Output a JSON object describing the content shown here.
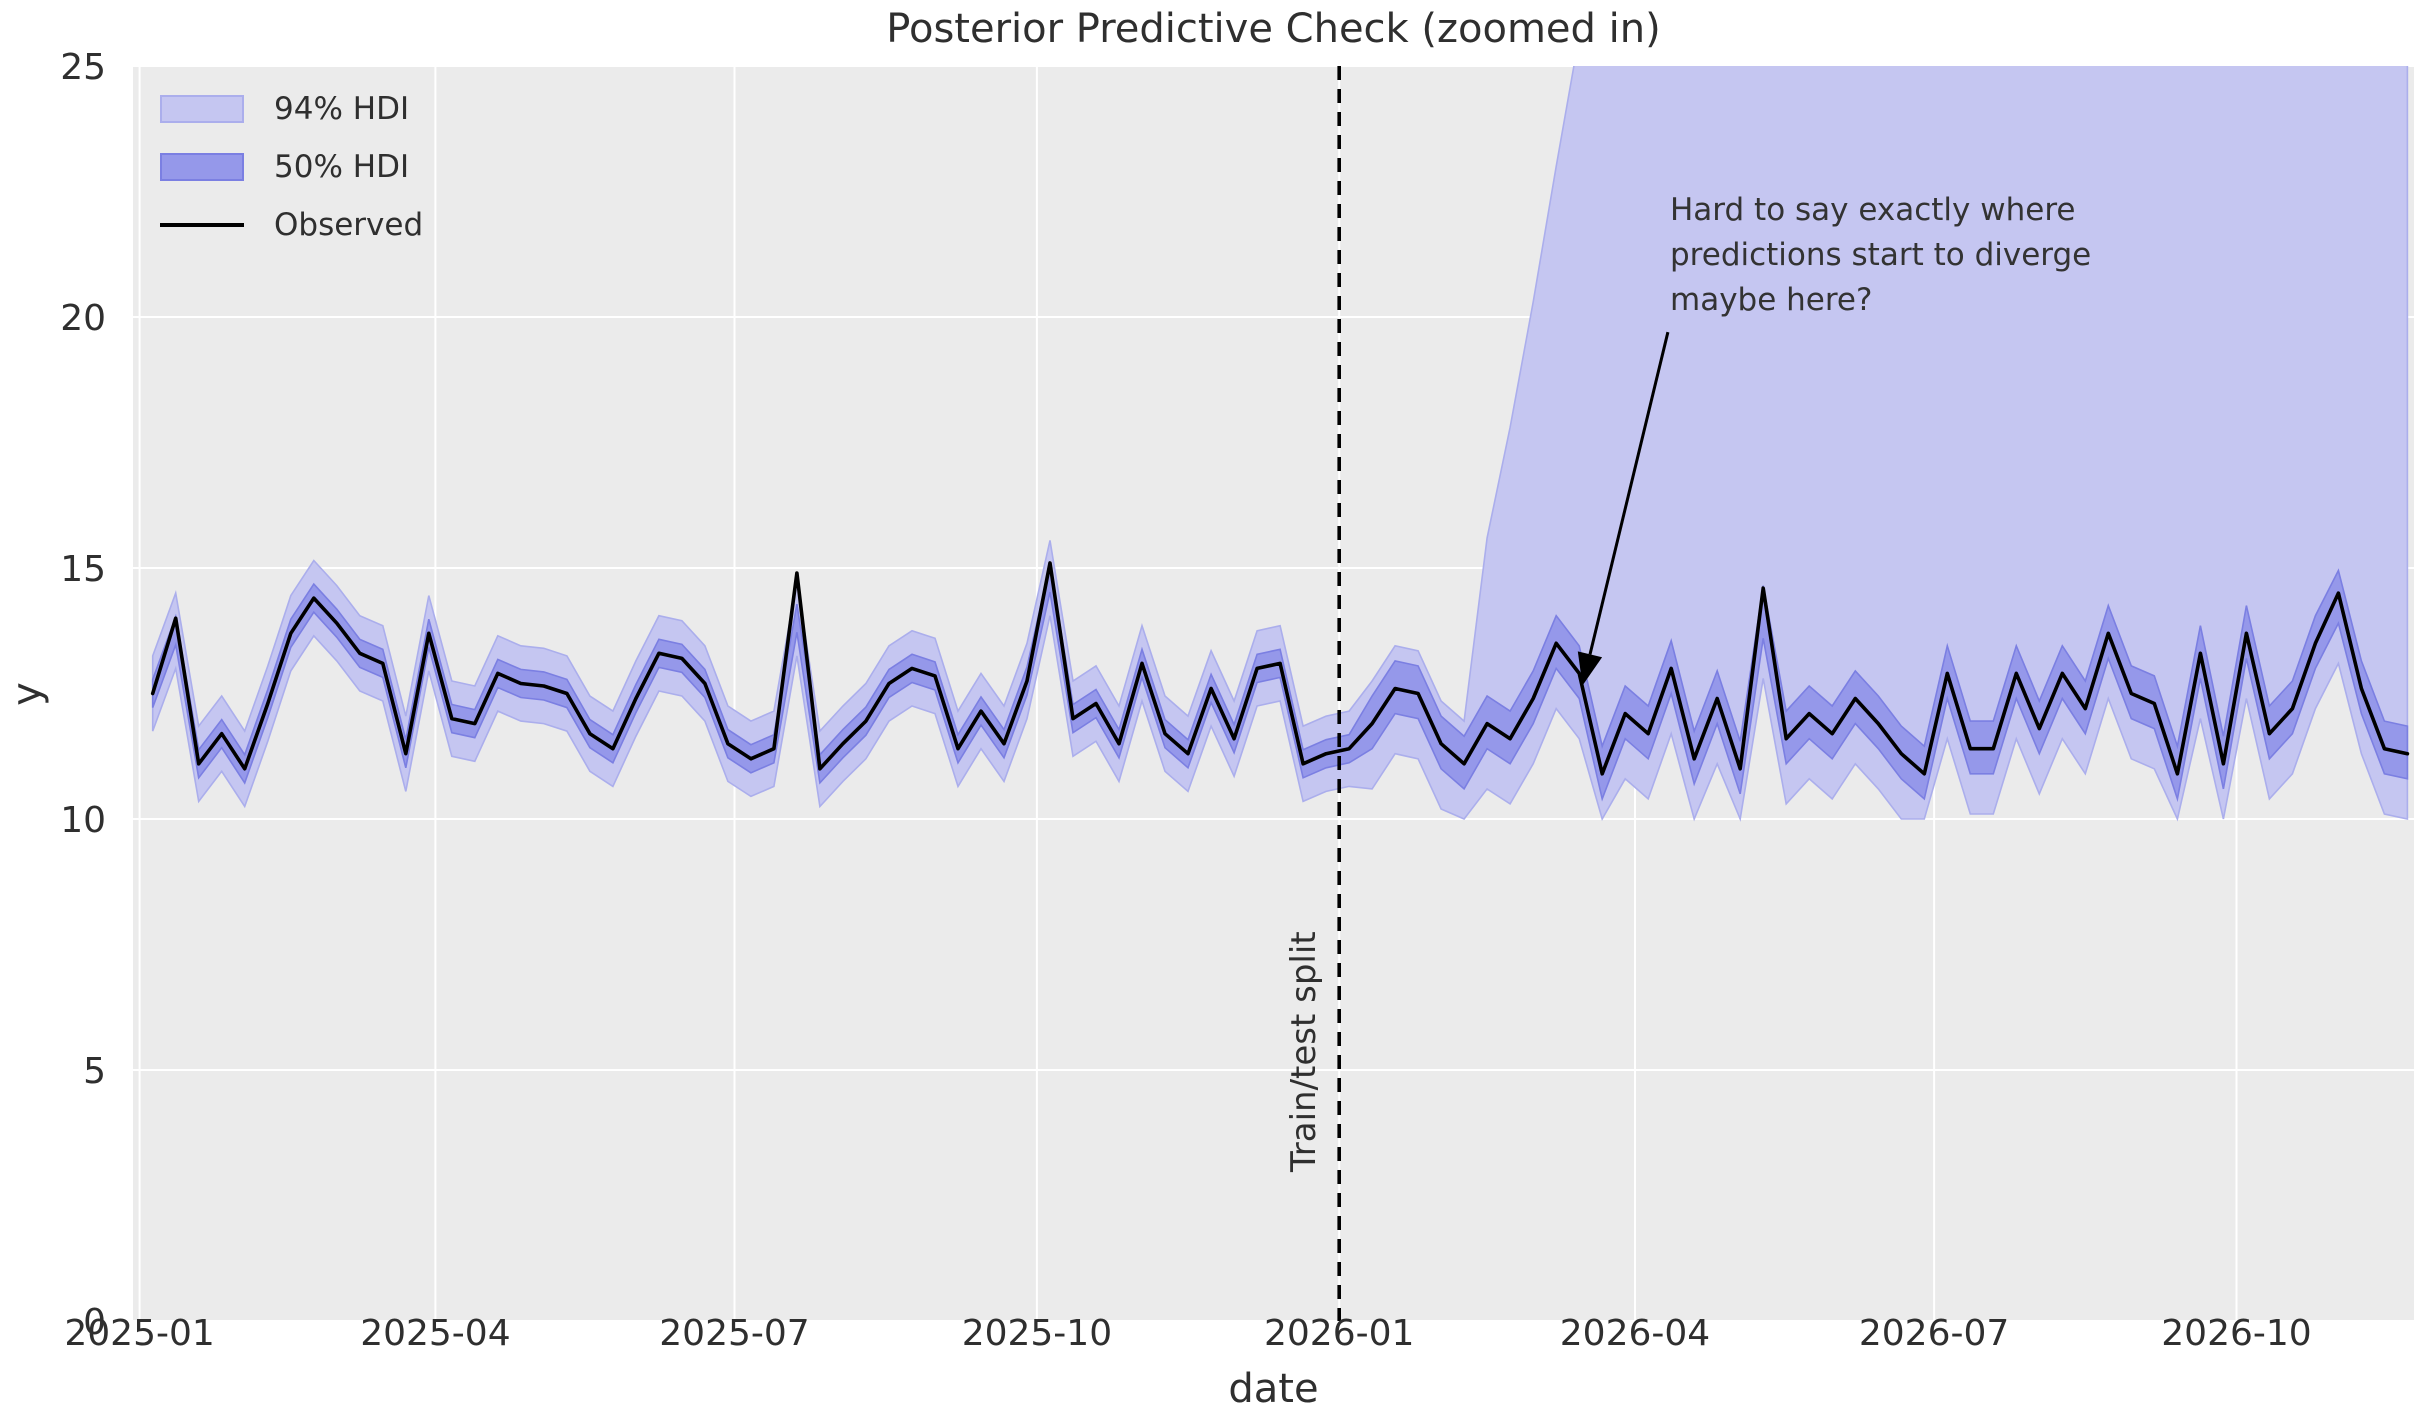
{
  "figure": {
    "title": "Posterior Predictive Check (zoomed in)"
  },
  "legend": {
    "items": [
      {
        "label": "94% HDI",
        "type": "band",
        "color": "#c5c6f1",
        "edge": "#abaeec"
      },
      {
        "label": "50% HDI",
        "type": "band",
        "color": "#9598ea",
        "edge": "#7b7fe2"
      },
      {
        "label": "Observed",
        "type": "line",
        "color": "#000000"
      }
    ]
  },
  "annotation": {
    "text": "Hard to say exactly where\npredictions start to diverge\nmaybe here?",
    "arrow_start": {
      "date": "2026-04-11",
      "y": 19.7
    },
    "arrow_tip": {
      "date": "2026-03-16",
      "y": 12.66
    }
  },
  "split": {
    "label": "Train/test split",
    "date": "2026-01-01"
  },
  "colors": {
    "figure_bg": "#ffffff",
    "plot_bg": "#ebebeb",
    "grid": "#ffffff",
    "hdi94_fill": "#c5c6f1",
    "hdi94_edge": "#abaeec",
    "hdi50_fill": "#9598ea",
    "hdi50_edge": "#7b7fe2",
    "observed_line": "#000000",
    "split_line": "#000000",
    "text": "#2f2f2f",
    "annotation_text": "#333333"
  },
  "chart_data": {
    "type": "line",
    "title": "Posterior Predictive Check (zoomed in)",
    "xlabel": "date",
    "ylabel": "y",
    "grid": true,
    "legend_position": "upper left",
    "x_axis": {
      "start": "2024-12-30",
      "end": "2026-11-24",
      "ticks": [
        {
          "date": "2025-01-01",
          "label": "2025-01"
        },
        {
          "date": "2025-04-01",
          "label": "2025-04"
        },
        {
          "date": "2025-07-01",
          "label": "2025-07"
        },
        {
          "date": "2025-10-01",
          "label": "2025-10"
        },
        {
          "date": "2026-01-01",
          "label": "2026-01"
        },
        {
          "date": "2026-04-01",
          "label": "2026-04"
        },
        {
          "date": "2026-07-01",
          "label": "2026-07"
        },
        {
          "date": "2026-10-01",
          "label": "2026-10"
        }
      ]
    },
    "y_axis": {
      "min": 0,
      "max": 25,
      "ticks": [
        0,
        5,
        10,
        15,
        20,
        25
      ]
    },
    "series_start_date": "2025-01-05",
    "freq_days": 7,
    "train_test_split_date": "2026-01-01",
    "observed": [
      12.5,
      14.0,
      11.1,
      11.7,
      11.0,
      12.3,
      13.7,
      14.4,
      13.9,
      13.3,
      13.1,
      11.3,
      13.7,
      12.0,
      11.9,
      12.9,
      12.7,
      12.65,
      12.5,
      11.7,
      11.4,
      12.4,
      13.3,
      13.2,
      12.7,
      11.5,
      11.2,
      11.4,
      14.9,
      11.0,
      11.5,
      11.95,
      12.7,
      13.0,
      12.85,
      11.4,
      12.15,
      11.5,
      12.75,
      15.1,
      12.0,
      12.3,
      11.5,
      13.1,
      11.7,
      11.3,
      12.6,
      11.6,
      13.0,
      13.1,
      11.1,
      11.3,
      11.4,
      11.9,
      12.6,
      12.5,
      11.5,
      11.1,
      11.9,
      11.6,
      12.4,
      13.5,
      12.9,
      10.9,
      12.1,
      11.7,
      13.0,
      11.2,
      12.4,
      11.0,
      14.6,
      11.6,
      12.1,
      11.7,
      12.4,
      11.9,
      11.3,
      10.9,
      12.9,
      11.4,
      11.4,
      12.9,
      11.8,
      12.9,
      12.2,
      13.7,
      12.5,
      12.3,
      10.9,
      13.3,
      11.1,
      13.7,
      11.7,
      12.2,
      13.5,
      14.5,
      12.6,
      11.4,
      11.3
    ],
    "hdi94_upper": [
      13.25,
      14.5,
      11.85,
      12.45,
      11.75,
      13.05,
      14.45,
      15.15,
      14.65,
      14.05,
      13.85,
      12.05,
      14.45,
      12.75,
      12.65,
      13.65,
      13.45,
      13.4,
      13.25,
      12.45,
      12.15,
      13.15,
      14.05,
      13.95,
      13.45,
      12.25,
      11.95,
      12.15,
      14.75,
      11.75,
      12.25,
      12.7,
      13.45,
      13.75,
      13.6,
      12.15,
      12.9,
      12.25,
      13.5,
      15.55,
      12.75,
      13.05,
      12.25,
      13.85,
      12.45,
      12.05,
      13.35,
      12.35,
      13.75,
      13.85,
      11.85,
      12.05,
      12.15,
      12.75,
      13.45,
      13.35,
      12.35,
      11.95,
      15.6,
      17.8,
      20.3,
      23.0,
      25.6,
      30,
      30,
      30,
      30,
      30,
      30,
      30,
      30,
      30,
      30,
      30,
      30,
      30,
      30,
      30,
      30,
      30,
      30,
      30,
      30,
      30,
      30,
      30,
      30,
      30,
      30,
      30,
      30,
      30,
      30,
      30,
      30,
      30,
      30,
      30,
      30
    ],
    "hdi94_lower": [
      11.75,
      13.0,
      10.35,
      10.95,
      10.25,
      11.55,
      12.95,
      13.65,
      13.15,
      12.55,
      12.35,
      10.55,
      12.95,
      11.25,
      11.15,
      12.15,
      11.95,
      11.9,
      11.75,
      10.95,
      10.65,
      11.65,
      12.55,
      12.45,
      11.95,
      10.75,
      10.45,
      10.65,
      13.25,
      10.25,
      10.75,
      11.2,
      11.95,
      12.25,
      12.1,
      10.65,
      11.4,
      10.75,
      12.0,
      14.05,
      11.25,
      11.55,
      10.75,
      12.35,
      10.95,
      10.55,
      11.85,
      10.85,
      12.25,
      12.35,
      10.35,
      10.55,
      10.65,
      10.6,
      11.3,
      11.2,
      10.2,
      10.0,
      10.6,
      10.3,
      11.1,
      12.2,
      11.6,
      10.0,
      10.8,
      10.4,
      11.7,
      10.0,
      11.1,
      10.0,
      12.8,
      10.3,
      10.8,
      10.4,
      11.1,
      10.6,
      10.0,
      10.0,
      11.6,
      10.1,
      10.1,
      11.6,
      10.5,
      11.6,
      10.9,
      12.4,
      11.2,
      11.0,
      10.0,
      12.0,
      10.0,
      12.4,
      10.4,
      10.9,
      12.2,
      13.1,
      11.3,
      10.1,
      10.0
    ],
    "hdi50_upper": [
      12.78,
      14.03,
      11.38,
      11.98,
      11.28,
      12.58,
      13.98,
      14.68,
      14.18,
      13.58,
      13.38,
      11.58,
      13.98,
      12.28,
      12.18,
      13.18,
      12.98,
      12.93,
      12.78,
      11.98,
      11.68,
      12.68,
      13.58,
      13.48,
      12.98,
      11.78,
      11.48,
      11.68,
      14.28,
      11.28,
      11.78,
      12.23,
      12.98,
      13.28,
      13.13,
      11.68,
      12.43,
      11.78,
      13.03,
      15.08,
      12.28,
      12.58,
      11.78,
      13.38,
      11.98,
      11.58,
      12.88,
      11.88,
      13.28,
      13.38,
      11.38,
      11.58,
      11.68,
      12.45,
      13.15,
      13.05,
      12.05,
      11.65,
      12.45,
      12.15,
      12.95,
      14.05,
      13.45,
      11.45,
      12.65,
      12.25,
      13.55,
      11.75,
      12.95,
      11.55,
      14.65,
      12.15,
      12.65,
      12.25,
      12.95,
      12.45,
      11.85,
      11.45,
      13.45,
      11.95,
      11.95,
      13.45,
      12.35,
      13.45,
      12.75,
      14.25,
      13.05,
      12.85,
      11.45,
      13.85,
      11.65,
      14.25,
      12.25,
      12.75,
      14.05,
      14.95,
      13.15,
      11.95,
      11.85
    ],
    "hdi50_lower": [
      12.22,
      13.47,
      10.82,
      11.42,
      10.72,
      12.02,
      13.42,
      14.12,
      13.62,
      13.02,
      12.82,
      11.02,
      13.42,
      11.72,
      11.62,
      12.62,
      12.42,
      12.37,
      12.22,
      11.42,
      11.12,
      12.12,
      13.02,
      12.92,
      12.42,
      11.22,
      10.92,
      11.12,
      13.72,
      10.72,
      11.22,
      11.67,
      12.42,
      12.72,
      12.57,
      11.12,
      11.87,
      11.22,
      12.47,
      14.52,
      11.72,
      12.02,
      11.22,
      12.82,
      11.42,
      11.02,
      12.32,
      11.32,
      12.72,
      12.82,
      10.82,
      11.02,
      11.12,
      11.4,
      12.1,
      12.0,
      11.0,
      10.6,
      11.4,
      11.1,
      11.9,
      13.0,
      12.4,
      10.4,
      11.6,
      11.2,
      12.5,
      10.7,
      11.9,
      10.5,
      13.6,
      11.1,
      11.6,
      11.2,
      11.9,
      11.4,
      10.8,
      10.4,
      12.4,
      10.9,
      10.9,
      12.4,
      11.3,
      12.4,
      11.7,
      13.2,
      12.0,
      11.8,
      10.4,
      12.8,
      10.6,
      13.2,
      11.2,
      11.7,
      13.0,
      13.9,
      12.1,
      10.9,
      10.8
    ]
  }
}
